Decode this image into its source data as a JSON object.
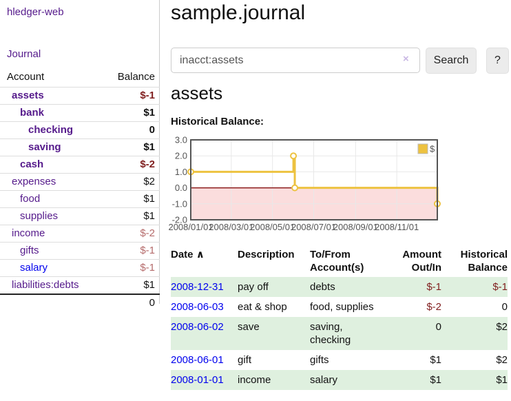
{
  "app": {
    "title": "hledger-web",
    "journal_link": "Journal"
  },
  "sidebar": {
    "header": {
      "account": "Account",
      "balance": "Balance"
    },
    "accounts": [
      {
        "name": "assets",
        "balance": "$-1",
        "level": 1,
        "bold": true,
        "balance_color": "negative"
      },
      {
        "name": "bank",
        "balance": "$1",
        "level": 2,
        "bold": true,
        "balance_color": "normal"
      },
      {
        "name": "checking",
        "balance": "0",
        "level": 3,
        "bold": true,
        "balance_color": "normal"
      },
      {
        "name": "saving",
        "balance": "$1",
        "level": 3,
        "bold": true,
        "balance_color": "normal"
      },
      {
        "name": "cash",
        "balance": "$-2",
        "level": 2,
        "bold": true,
        "balance_color": "negative"
      },
      {
        "name": "expenses",
        "balance": "$2",
        "level": 1,
        "bold": false,
        "balance_color": "normal"
      },
      {
        "name": "food",
        "balance": "$1",
        "level": 2,
        "bold": false,
        "balance_color": "normal"
      },
      {
        "name": "supplies",
        "balance": "$1",
        "level": 2,
        "bold": false,
        "balance_color": "normal"
      },
      {
        "name": "income",
        "balance": "$-2",
        "level": 1,
        "bold": false,
        "balance_color": "negative-light"
      },
      {
        "name": "gifts",
        "balance": "$-1",
        "level": 2,
        "bold": false,
        "balance_color": "negative-light"
      },
      {
        "name": "salary",
        "balance": "$-1",
        "level": 2,
        "bold": false,
        "balance_color": "negative-light",
        "link_color": "blue"
      },
      {
        "name": "liabilities:debts",
        "balance": "$1",
        "level": 1,
        "bold": false,
        "balance_color": "normal"
      }
    ],
    "total": "0"
  },
  "main": {
    "title": "sample.journal",
    "search": {
      "query": "inacct:assets",
      "clear_icon": "×",
      "button": "Search",
      "help": "?"
    },
    "account_heading": "assets"
  },
  "chart_data": {
    "type": "line",
    "title": "Historical Balance:",
    "legend": [
      {
        "name": "$",
        "color": "#edc240"
      }
    ],
    "series": [
      {
        "name": "$",
        "step": true,
        "points": [
          [
            "2008/01/01",
            1
          ],
          [
            "2008/06/01",
            2
          ],
          [
            "2008/06/03",
            0
          ],
          [
            "2008/12/31",
            -1
          ]
        ]
      }
    ],
    "x_ticks": [
      "2008/01/01",
      "2008/03/01",
      "2008/05/01",
      "2008/07/01",
      "2008/09/01",
      "2008/11/01"
    ],
    "y_ticks": [
      "3.0",
      "2.0",
      "1.0",
      "0.0",
      "-1.0",
      "-2.0"
    ],
    "ylim": [
      -2,
      3
    ],
    "x_range": [
      "2008/01/01",
      "2008/12/31"
    ],
    "grid": true,
    "legend_position": "top-right",
    "colors": {
      "series": "#edc240",
      "negative_region": "#fbdddd",
      "zero_line": "#8b1a1a",
      "grid": "#e8e8e8",
      "border": "#545454",
      "tick_text": "#545454"
    }
  },
  "register": {
    "headers": {
      "date": "Date",
      "sort_icon": "∧",
      "description": "Description",
      "account": "To/From Account(s)",
      "amount": "Amount Out/In",
      "balance": "Historical Balance"
    },
    "rows": [
      {
        "date": "2008-12-31",
        "description": "pay off",
        "accounts": "debts",
        "amount": "$-1",
        "amount_neg": true,
        "balance": "$-1",
        "balance_neg": true,
        "shaded": true
      },
      {
        "date": "2008-06-03",
        "description": "eat & shop",
        "accounts": "food, supplies",
        "amount": "$-2",
        "amount_neg": true,
        "balance": "0",
        "balance_neg": false,
        "shaded": false
      },
      {
        "date": "2008-06-02",
        "description": "save",
        "accounts": "saving, checking",
        "amount": "0",
        "amount_neg": false,
        "balance": "$2",
        "balance_neg": false,
        "shaded": true
      },
      {
        "date": "2008-06-01",
        "description": "gift",
        "accounts": "gifts",
        "amount": "$1",
        "amount_neg": false,
        "balance": "$2",
        "balance_neg": false,
        "shaded": false
      },
      {
        "date": "2008-01-01",
        "description": "income",
        "accounts": "salary",
        "amount": "$1",
        "amount_neg": false,
        "balance": "$1",
        "balance_neg": false,
        "shaded": true
      }
    ]
  }
}
